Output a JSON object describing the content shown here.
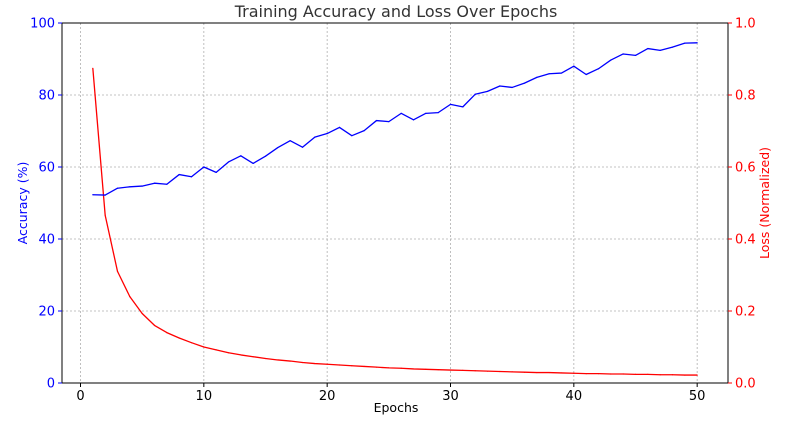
{
  "chart_data": {
    "type": "line",
    "title": "Training Accuracy and Loss Over Epochs",
    "xlabel": "Epochs",
    "ylabel_left": "Accuracy (%)",
    "ylabel_right": "Loss (Normalized)",
    "xlim": [
      -1.5,
      52.5
    ],
    "ylim_left": [
      0,
      100
    ],
    "ylim_right": [
      0,
      1.0
    ],
    "xticks": [
      "0",
      "10",
      "20",
      "30",
      "40",
      "50"
    ],
    "yticks_left": [
      "0",
      "20",
      "40",
      "60",
      "80",
      "100"
    ],
    "yticks_right": [
      "0.0",
      "0.2",
      "0.4",
      "0.6",
      "0.8",
      "1.0"
    ],
    "grid": true,
    "colors": {
      "accuracy": "#0000ff",
      "loss": "#ff0000",
      "left_axis": "#0000ff",
      "right_axis": "#ff0000"
    },
    "x": [
      1,
      2,
      3,
      4,
      5,
      6,
      7,
      8,
      9,
      10,
      11,
      12,
      13,
      14,
      15,
      16,
      17,
      18,
      19,
      20,
      21,
      22,
      23,
      24,
      25,
      26,
      27,
      28,
      29,
      30,
      31,
      32,
      33,
      34,
      35,
      36,
      37,
      38,
      39,
      40,
      41,
      42,
      43,
      44,
      45,
      46,
      47,
      48,
      49,
      50
    ],
    "series": [
      {
        "axis": "left",
        "values": [
          52.3,
          52.2,
          54.1,
          54.5,
          54.7,
          55.5,
          55.2,
          57.9,
          57.3,
          60.0,
          58.5,
          61.4,
          63.1,
          61.0,
          63.0,
          65.4,
          67.3,
          65.5,
          68.3,
          69.3,
          71.0,
          68.7,
          70.1,
          72.9,
          72.6,
          74.9,
          73.1,
          74.9,
          75.1,
          77.4,
          76.7,
          80.2,
          81.0,
          82.5,
          82.1,
          83.3,
          84.9,
          85.9,
          86.1,
          88.0,
          85.7,
          87.3,
          89.7,
          91.4,
          91.0,
          92.9,
          92.4,
          93.3,
          94.4,
          94.5
        ]
      },
      {
        "axis": "right",
        "values": [
          0.874,
          0.466,
          0.31,
          0.24,
          0.193,
          0.16,
          0.14,
          0.125,
          0.112,
          0.1,
          0.092,
          0.084,
          0.078,
          0.073,
          0.068,
          0.064,
          0.061,
          0.057,
          0.054,
          0.052,
          0.05,
          0.048,
          0.046,
          0.044,
          0.042,
          0.041,
          0.039,
          0.038,
          0.037,
          0.036,
          0.035,
          0.034,
          0.033,
          0.032,
          0.031,
          0.03,
          0.029,
          0.029,
          0.028,
          0.027,
          0.026,
          0.026,
          0.025,
          0.025,
          0.024,
          0.024,
          0.023,
          0.023,
          0.022,
          0.022
        ]
      }
    ]
  }
}
